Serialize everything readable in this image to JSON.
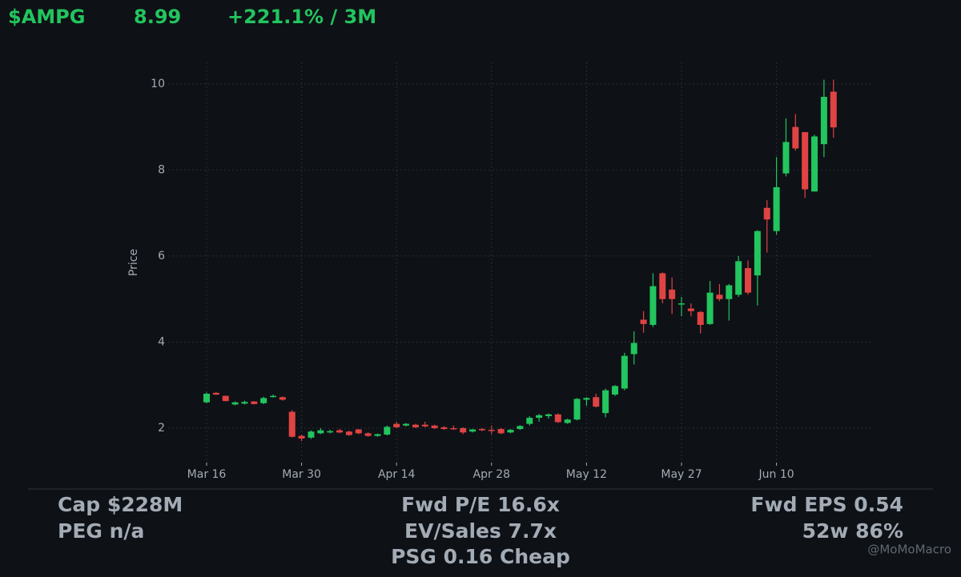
{
  "header": {
    "ticker": "$AMPG",
    "price": "8.99",
    "change": "+221.1% / 3M"
  },
  "chart_data": {
    "type": "candlestick",
    "ylabel": "Price",
    "categories": [
      "Mar 16",
      null,
      null,
      null,
      null,
      null,
      null,
      null,
      null,
      null,
      "Mar 30",
      null,
      null,
      null,
      null,
      null,
      null,
      null,
      null,
      null,
      "Apr 14",
      null,
      null,
      null,
      null,
      null,
      null,
      null,
      null,
      null,
      "Apr 28",
      null,
      null,
      null,
      null,
      null,
      null,
      null,
      null,
      null,
      "May 12",
      null,
      null,
      null,
      null,
      null,
      null,
      null,
      null,
      null,
      "May 27",
      null,
      null,
      null,
      null,
      null,
      null,
      null,
      null,
      null,
      "Jun 10",
      null,
      null,
      null,
      null,
      null,
      null
    ],
    "open": [
      2.6,
      2.82,
      2.75,
      2.55,
      2.57,
      2.62,
      2.58,
      2.73,
      2.72,
      2.38,
      1.82,
      1.78,
      1.88,
      1.9,
      1.95,
      1.92,
      1.97,
      1.88,
      1.82,
      1.85,
      2.1,
      2.06,
      2.08,
      2.08,
      2.06,
      2.02,
      2.0,
      2.0,
      1.92,
      1.98,
      1.96,
      1.98,
      1.9,
      1.98,
      2.1,
      2.24,
      2.28,
      2.32,
      2.12,
      2.2,
      2.66,
      2.72,
      2.35,
      2.78,
      2.92,
      3.72,
      4.52,
      4.4,
      5.6,
      5.22,
      4.88,
      4.78,
      4.7,
      4.42,
      5.1,
      5.0,
      5.1,
      5.72,
      5.55,
      7.12,
      6.58,
      7.92,
      9.0,
      8.88,
      7.5,
      8.6,
      9.82
    ],
    "high": [
      2.83,
      2.84,
      2.76,
      2.62,
      2.64,
      2.63,
      2.73,
      2.78,
      2.74,
      2.42,
      1.85,
      1.95,
      2.0,
      1.96,
      1.98,
      1.94,
      1.98,
      1.9,
      1.87,
      2.06,
      2.15,
      2.12,
      2.1,
      2.15,
      2.08,
      2.05,
      2.06,
      2.02,
      1.98,
      2.0,
      2.06,
      2.0,
      1.98,
      2.07,
      2.28,
      2.33,
      2.34,
      2.34,
      2.22,
      2.7,
      2.72,
      2.8,
      2.92,
      3.0,
      3.75,
      4.25,
      4.72,
      5.6,
      5.62,
      5.5,
      5.05,
      4.9,
      4.72,
      5.42,
      5.35,
      5.35,
      6.0,
      5.9,
      6.6,
      7.3,
      8.3,
      9.2,
      9.3,
      8.88,
      8.82,
      10.1,
      10.1
    ],
    "low": [
      2.58,
      2.77,
      2.62,
      2.53,
      2.55,
      2.55,
      2.56,
      2.71,
      2.64,
      1.78,
      1.7,
      1.75,
      1.86,
      1.88,
      1.88,
      1.82,
      1.86,
      1.8,
      1.8,
      1.83,
      2.0,
      2.04,
      2.0,
      2.02,
      1.98,
      1.96,
      1.96,
      1.86,
      1.9,
      1.93,
      1.86,
      1.86,
      1.88,
      1.96,
      2.06,
      2.15,
      2.22,
      2.12,
      2.1,
      2.18,
      2.52,
      2.48,
      2.25,
      2.75,
      2.88,
      3.48,
      4.22,
      4.35,
      4.9,
      4.65,
      4.6,
      4.6,
      4.2,
      4.4,
      4.95,
      4.5,
      5.05,
      5.1,
      4.85,
      6.08,
      6.5,
      7.85,
      8.45,
      7.35,
      7.5,
      8.3,
      8.75
    ],
    "close": [
      2.8,
      2.78,
      2.63,
      2.6,
      2.61,
      2.56,
      2.7,
      2.75,
      2.66,
      1.8,
      1.76,
      1.92,
      1.95,
      1.93,
      1.9,
      1.84,
      1.88,
      1.82,
      1.86,
      2.03,
      2.02,
      2.1,
      2.02,
      2.04,
      2.0,
      1.98,
      1.98,
      1.9,
      1.97,
      1.95,
      1.94,
      1.88,
      1.96,
      2.05,
      2.24,
      2.3,
      2.32,
      2.14,
      2.2,
      2.68,
      2.7,
      2.5,
      2.88,
      2.98,
      3.68,
      3.98,
      4.42,
      5.3,
      5.0,
      5.0,
      4.9,
      4.72,
      4.4,
      5.15,
      5.0,
      5.32,
      5.88,
      5.15,
      6.58,
      6.85,
      7.6,
      8.65,
      8.5,
      7.55,
      8.78,
      9.7,
      8.99
    ],
    "up_color": "#22c55e",
    "down_color": "#e04343",
    "ylim": [
      1.2,
      10.5
    ],
    "yticks": [
      2,
      4,
      6,
      8,
      10
    ],
    "grid": true
  },
  "stats": {
    "left": [
      "Cap $228M",
      "PEG n/a"
    ],
    "center": [
      "Fwd P/E 16.6x",
      "EV/Sales 7.7x",
      "PSG 0.16 Cheap"
    ],
    "right": [
      "Fwd EPS 0.54",
      "52w 86%"
    ]
  },
  "watermark": "@MoMoMacro"
}
